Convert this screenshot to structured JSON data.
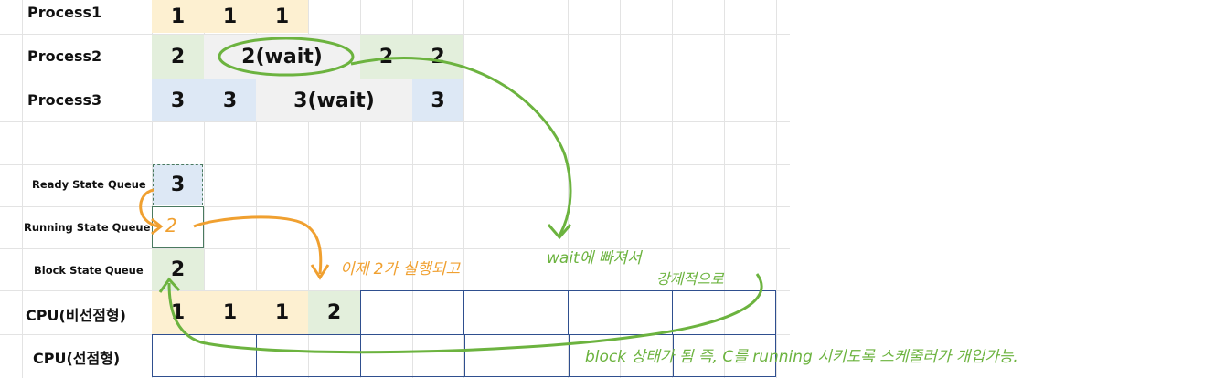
{
  "process_rows": [
    {
      "label": "Process1",
      "cells": [
        "1",
        "1",
        "1"
      ]
    },
    {
      "label": "Process2",
      "cells": [
        "2",
        "2(wait)",
        "2",
        "2"
      ]
    },
    {
      "label": "Process3",
      "cells": [
        "3",
        "3",
        "3(wait)",
        "3"
      ]
    }
  ],
  "queues": {
    "ready": {
      "label": "Ready State Queue",
      "value": "3"
    },
    "running": {
      "label": "Running State Queue",
      "value": "2"
    },
    "block": {
      "label": "Block State Queue",
      "value": "2"
    }
  },
  "cpu_rows": [
    {
      "label": "CPU(비선점형)",
      "cells": [
        "1",
        "1",
        "1",
        "2"
      ]
    },
    {
      "label": "CPU(선점형)",
      "cells": []
    }
  ],
  "annotations": {
    "now_running": "이제 2가 실행되고",
    "wait_escape_1": "wait에 빠져서",
    "wait_escape_2": "강제적으로",
    "block_note": "block 상태가 됨  즉, C를 running 시키도록 스케줄러가 개입가능."
  },
  "colors": {
    "process1": "#fdf0d1",
    "process2": "#e3efdc",
    "process3": "#dde8f5",
    "wait": "#f1f1f1",
    "cpu_border": "#2f4f8f",
    "annotation_green": "#6cb33f",
    "annotation_orange": "#f0a030"
  }
}
